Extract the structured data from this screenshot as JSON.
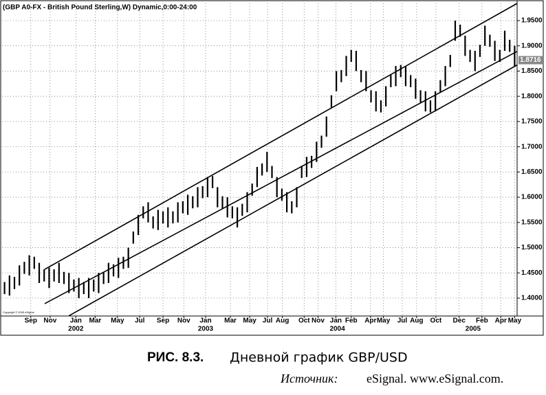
{
  "chart_data": {
    "type": "hilo",
    "title": "(GBP A0-FX - British Pound Sterling,W) Dynamic,0:00-24:00",
    "copyright": "Copyright © 2005 eSignal",
    "color": "#000000",
    "high": [
      1.432,
      1.445,
      1.442,
      1.465,
      1.472,
      1.485,
      1.482,
      1.47,
      1.457,
      1.46,
      1.457,
      1.47,
      1.452,
      1.45,
      1.437,
      1.44,
      1.432,
      1.44,
      1.437,
      1.45,
      1.452,
      1.47,
      1.467,
      1.48,
      1.482,
      1.5,
      1.532,
      1.565,
      1.582,
      1.59,
      1.562,
      1.575,
      1.572,
      1.58,
      1.572,
      1.59,
      1.592,
      1.605,
      1.602,
      1.62,
      1.622,
      1.64,
      1.642,
      1.62,
      1.602,
      1.6,
      1.582,
      1.58,
      1.587,
      1.61,
      1.627,
      1.66,
      1.667,
      1.69,
      1.662,
      1.64,
      1.617,
      1.61,
      1.592,
      1.62,
      1.662,
      1.68,
      1.682,
      1.71,
      1.722,
      1.76,
      1.802,
      1.85,
      1.852,
      1.88,
      1.892,
      1.89,
      1.852,
      1.85,
      1.812,
      1.81,
      1.792,
      1.82,
      1.842,
      1.86,
      1.862,
      1.86,
      1.842,
      1.835,
      1.812,
      1.81,
      1.792,
      1.81,
      1.832,
      1.86,
      1.882,
      1.95,
      1.942,
      1.92,
      1.892,
      1.89,
      1.902,
      1.94,
      1.922,
      1.91,
      1.892,
      1.93,
      1.912,
      1.9
    ],
    "low": [
      1.408,
      1.405,
      1.418,
      1.425,
      1.448,
      1.445,
      1.458,
      1.43,
      1.433,
      1.42,
      1.433,
      1.43,
      1.428,
      1.41,
      1.413,
      1.4,
      1.408,
      1.4,
      1.413,
      1.41,
      1.428,
      1.43,
      1.443,
      1.44,
      1.458,
      1.46,
      1.508,
      1.525,
      1.558,
      1.55,
      1.538,
      1.535,
      1.548,
      1.54,
      1.548,
      1.55,
      1.568,
      1.565,
      1.578,
      1.58,
      1.598,
      1.6,
      1.618,
      1.58,
      1.578,
      1.56,
      1.558,
      1.54,
      1.563,
      1.57,
      1.603,
      1.62,
      1.643,
      1.65,
      1.638,
      1.6,
      1.593,
      1.57,
      1.568,
      1.58,
      1.638,
      1.64,
      1.658,
      1.67,
      1.698,
      1.72,
      1.778,
      1.81,
      1.828,
      1.84,
      1.868,
      1.85,
      1.828,
      1.81,
      1.788,
      1.77,
      1.768,
      1.78,
      1.818,
      1.82,
      1.838,
      1.82,
      1.818,
      1.795,
      1.788,
      1.77,
      1.768,
      1.77,
      1.808,
      1.82,
      1.858,
      1.91,
      1.918,
      1.88,
      1.868,
      1.85,
      1.878,
      1.9,
      1.898,
      1.87,
      1.868,
      1.89,
      1.888,
      1.86
    ],
    "last_price": 1.8716,
    "channel": [
      {
        "x": [
          8.1,
          103.5
        ],
        "y": [
          1.457,
          1.984
        ]
      },
      {
        "x": [
          8.1,
          103.5
        ],
        "y": [
          1.389,
          1.889
        ]
      },
      {
        "x": [
          13.0,
          103.5
        ],
        "y": [
          1.365,
          1.862
        ]
      }
    ],
    "ylim": [
      1.3646,
      1.984
    ],
    "yticks": [
      {
        "value": 1.4,
        "label": "1.4000"
      },
      {
        "value": 1.45,
        "label": "1.4500"
      },
      {
        "value": 1.5,
        "label": "1.5000"
      },
      {
        "value": 1.55,
        "label": "1.5500"
      },
      {
        "value": 1.6,
        "label": "1.6000"
      },
      {
        "value": 1.65,
        "label": "1.6500"
      },
      {
        "value": 1.7,
        "label": "1.7000"
      },
      {
        "value": 1.75,
        "label": "1.7500"
      },
      {
        "value": 1.8,
        "label": "1.8000"
      },
      {
        "value": 1.85,
        "label": "1.8500"
      },
      {
        "value": 1.9,
        "label": "1.9000"
      },
      {
        "value": 1.95,
        "label": "1.9500"
      }
    ],
    "xticks": [
      {
        "value": 5.3,
        "label": "Sep"
      },
      {
        "value": 9.2,
        "label": "Nov"
      },
      {
        "value": 14.4,
        "label": "Jan"
      },
      {
        "value": 18.3,
        "label": "Mar"
      },
      {
        "value": 22.8,
        "label": "May"
      },
      {
        "value": 27.3,
        "label": "Jul"
      },
      {
        "value": 32.0,
        "label": "Sep"
      },
      {
        "value": 36.2,
        "label": "Nov"
      },
      {
        "value": 40.6,
        "label": "Jan"
      },
      {
        "value": 45.6,
        "label": "Mar"
      },
      {
        "value": 49.5,
        "label": "May"
      },
      {
        "value": 53.1,
        "label": "Jul"
      },
      {
        "value": 56.1,
        "label": "Aug"
      },
      {
        "value": 60.5,
        "label": "Oct"
      },
      {
        "value": 63.3,
        "label": "Nov"
      },
      {
        "value": 66.9,
        "label": "Jan"
      },
      {
        "value": 70.0,
        "label": "Feb"
      },
      {
        "value": 73.9,
        "label": "Apr"
      },
      {
        "value": 76.5,
        "label": "May"
      },
      {
        "value": 80.3,
        "label": "Jul"
      },
      {
        "value": 83.2,
        "label": "Aug"
      },
      {
        "value": 87.1,
        "label": "Oct"
      },
      {
        "value": 91.8,
        "label": "Dec"
      },
      {
        "value": 96.4,
        "label": "Feb"
      },
      {
        "value": 100.2,
        "label": "Apr"
      },
      {
        "value": 103.0,
        "label": "May"
      }
    ],
    "year_labels": [
      {
        "value": 14.4,
        "label": "2002"
      },
      {
        "value": 40.6,
        "label": "2003"
      },
      {
        "value": 67.2,
        "label": "2004"
      },
      {
        "value": 94.6,
        "label": "2005"
      }
    ],
    "grid": true
  },
  "caption": {
    "number": "РИС. 8.3.",
    "text": "Дневной график GBP/USD",
    "source_label": "Источник:",
    "source": "eSignal. www.eSignal.com."
  }
}
